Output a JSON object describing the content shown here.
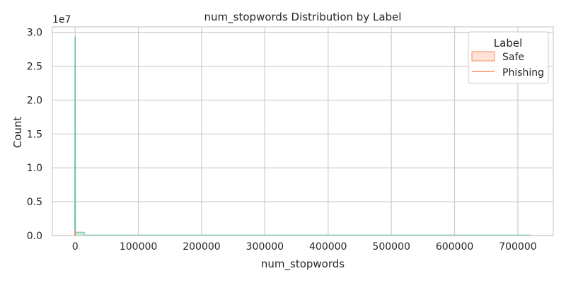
{
  "chart_data": {
    "type": "histogram",
    "title": "num_stopwords Distribution by Label",
    "xlabel": "num_stopwords",
    "ylabel": "Count",
    "y_scale_label": "1e7",
    "xlim": [
      -36000,
      756000
    ],
    "ylim": [
      0,
      3.08
    ],
    "x_ticks": [
      0,
      100000,
      200000,
      300000,
      400000,
      500000,
      600000,
      700000
    ],
    "x_tick_labels": [
      "0",
      "100000",
      "200000",
      "300000",
      "400000",
      "500000",
      "600000",
      "700000"
    ],
    "y_ticks": [
      0,
      0.5,
      1.0,
      1.5,
      2.0,
      2.5,
      3.0
    ],
    "y_tick_labels": [
      "0.0",
      "0.5",
      "1.0",
      "1.5",
      "2.0",
      "2.5",
      "3.0"
    ],
    "grid": true,
    "legend": {
      "title": "Label",
      "placement": "top-right",
      "entries": [
        {
          "name": "Safe",
          "marker": "patch"
        },
        {
          "name": "Phishing",
          "marker": "line"
        }
      ]
    },
    "series": [
      {
        "name": "Safe",
        "color": "#66c2a5",
        "bins": [
          {
            "x0": -200,
            "x1": 14500,
            "count": 0.05
          },
          {
            "x0": 14500,
            "x1": 720000,
            "count": 0.0
          }
        ],
        "kde": [
          [
            -300,
            0
          ],
          [
            0,
            2.93
          ],
          [
            300,
            0
          ]
        ]
      },
      {
        "name": "Phishing",
        "color": "#fc8d62",
        "bins": [],
        "kde": [
          [
            -200,
            0.02
          ],
          [
            0,
            0.08
          ],
          [
            300,
            0.01
          ],
          [
            1000,
            0
          ]
        ]
      }
    ]
  }
}
